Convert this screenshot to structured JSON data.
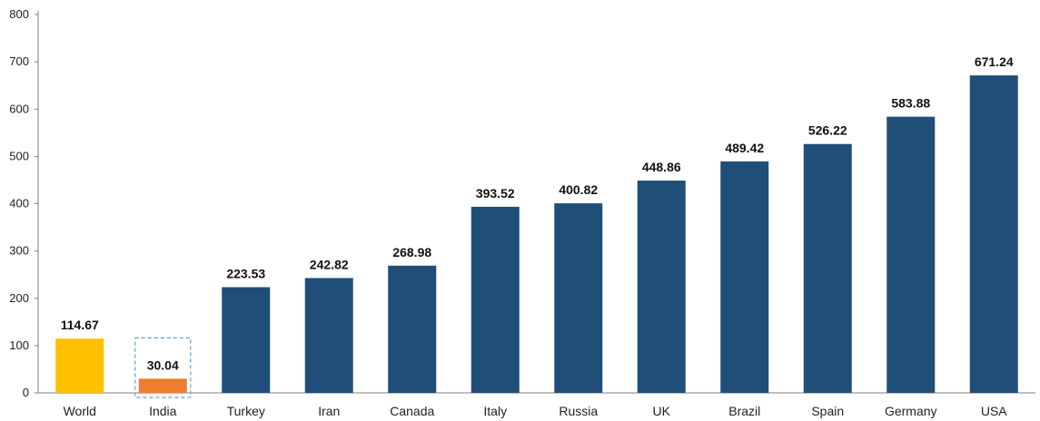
{
  "chart_data": {
    "type": "bar",
    "categories": [
      "World",
      "India",
      "Turkey",
      "Iran",
      "Canada",
      "Italy",
      "Russia",
      "UK",
      "Brazil",
      "Spain",
      "Germany",
      "USA"
    ],
    "values": [
      114.67,
      30.04,
      223.53,
      242.82,
      268.98,
      393.52,
      400.82,
      448.86,
      489.42,
      526.22,
      583.88,
      671.24
    ],
    "value_labels": [
      "114.67",
      "30.04",
      "223.53",
      "242.82",
      "268.98",
      "393.52",
      "400.82",
      "448.86",
      "489.42",
      "526.22",
      "583.88",
      "671.24"
    ],
    "title": "",
    "xlabel": "",
    "ylabel": "",
    "ylim": [
      0,
      800
    ],
    "y_ticks": [
      0,
      100,
      200,
      300,
      400,
      500,
      600,
      700,
      800
    ],
    "y_tick_labels": [
      "0",
      "100",
      "200",
      "300",
      "400",
      "500",
      "600",
      "700",
      "800"
    ],
    "grid": false,
    "legend": "none",
    "colors": {
      "default": "#1f4e79",
      "World": "#ffc000",
      "India": "#ed7d31",
      "highlight_box": "#5b9bd5",
      "axis": "#7f7f7f"
    },
    "highlighted_category": "India"
  }
}
